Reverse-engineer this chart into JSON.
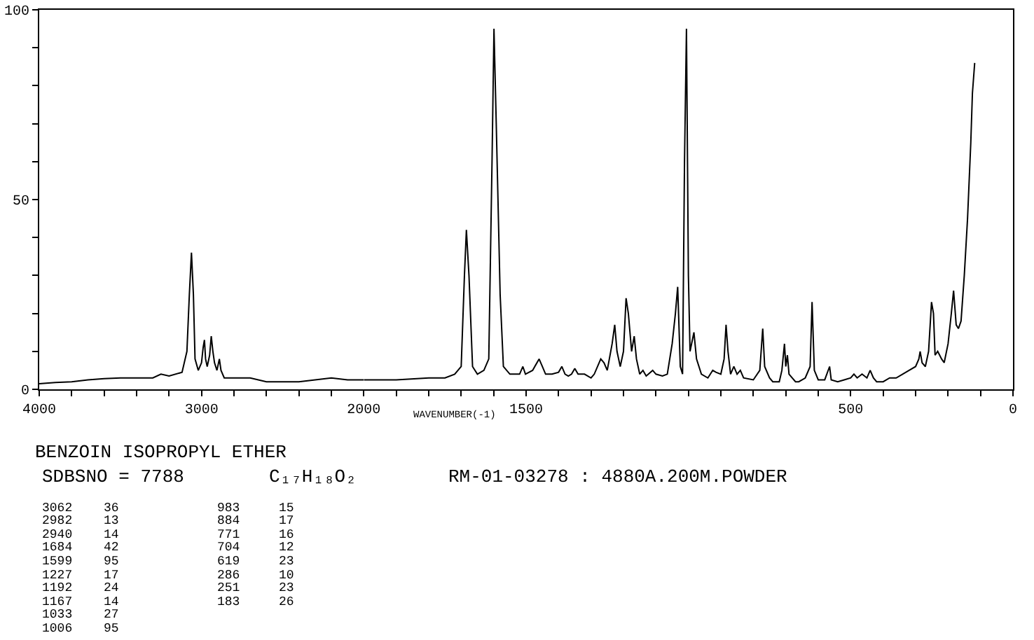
{
  "chart_data": [
    {
      "type": "line",
      "title": "BENZOIN ISOPROPYL ETHER",
      "subtitle": "SDBSNO = 7788",
      "annotations": [
        "C₁₇H₁₈O₂",
        "RM-01-03278 : 4880A.200M.POWDER",
        "3062 36",
        "2982 13",
        "2940 14",
        "1684 42",
        "1599 95",
        "1227 17",
        "1192 24",
        "1167 14",
        "1033 27",
        "1006 95",
        "983 15",
        "884 17",
        "771 16",
        "704 12",
        "619 23",
        "286 10",
        "251 23",
        "183 26"
      ],
      "x": [
        4000,
        3900,
        3800,
        3700,
        3600,
        3500,
        3400,
        3300,
        3250,
        3200,
        3120,
        3090,
        3075,
        3062,
        3050,
        3040,
        3020,
        3000,
        2990,
        2982,
        2975,
        2965,
        2950,
        2940,
        2930,
        2920,
        2905,
        2890,
        2880,
        2860,
        2800,
        2700,
        2600,
        2500,
        2400,
        2300,
        2200,
        2100,
        2000
      ],
      "series": [
        {
          "color": "#000000",
          "values": [
            1.5,
            1.8,
            2,
            2.5,
            2.8,
            3,
            3,
            3,
            4,
            3.5,
            4.5,
            10,
            25,
            36,
            25,
            8,
            5,
            7,
            11,
            13,
            8,
            6,
            9,
            14,
            10,
            7,
            5,
            8,
            5,
            3,
            3,
            3,
            2,
            2,
            2,
            2.5,
            3,
            2.5,
            2.5
          ]
        }
      ],
      "xlim": [
        4000,
        2000
      ],
      "xticks": [
        4000,
        {
          "value": 3800,
          "label": null
        },
        {
          "value": 3600,
          "label": null
        },
        {
          "value": 3400,
          "label": null
        },
        {
          "value": 3200,
          "label": null
        },
        3000,
        {
          "value": 2800,
          "label": null
        },
        {
          "value": 2600,
          "label": null
        },
        {
          "value": 2400,
          "label": null
        },
        {
          "value": 2200,
          "label": null
        },
        2000
      ],
      "ylim": [
        0,
        100
      ],
      "yticks": [
        0,
        {
          "value": 10,
          "label": null
        },
        {
          "value": 20,
          "label": null
        },
        {
          "value": 30,
          "label": null
        },
        {
          "value": 40,
          "label": null
        },
        50,
        {
          "value": 60,
          "label": null
        },
        {
          "value": 70,
          "label": null
        },
        {
          "value": 80,
          "label": null
        },
        {
          "value": 90,
          "label": null
        },
        100
      ]
    },
    {
      "type": "line",
      "xlabel": "WAVENUMBER(-1)",
      "x": [
        2000,
        1900,
        1800,
        1750,
        1720,
        1700,
        1690,
        1684,
        1676,
        1665,
        1650,
        1630,
        1615,
        1605,
        1599,
        1592,
        1580,
        1570,
        1550,
        1520,
        1510,
        1502,
        1480,
        1460,
        1450,
        1440,
        1420,
        1400,
        1390,
        1380,
        1370,
        1360,
        1350,
        1340,
        1320,
        1300,
        1290,
        1270,
        1260,
        1250,
        1235,
        1227,
        1220,
        1210,
        1200,
        1192,
        1185,
        1175,
        1167,
        1160,
        1150,
        1140,
        1130,
        1110,
        1100,
        1080,
        1065,
        1050,
        1040,
        1033,
        1025,
        1018,
        1012,
        1006,
        1000,
        995,
        983,
        975,
        960,
        940,
        925,
        915,
        900,
        890,
        884,
        878,
        870,
        860,
        850,
        840,
        830,
        800,
        780,
        771,
        765,
        750,
        740,
        720,
        712,
        704,
        700,
        695,
        690,
        670,
        660,
        640,
        625,
        619,
        612,
        600,
        580,
        565,
        560,
        540,
        520,
        500,
        490,
        480,
        465,
        450,
        440,
        430,
        420,
        400,
        380,
        360,
        340,
        320,
        300,
        290,
        286,
        280,
        270,
        260,
        251,
        245,
        240,
        232,
        220,
        212,
        200,
        190,
        183,
        175,
        168,
        160,
        150,
        140,
        130,
        125,
        118
      ],
      "series": [
        {
          "color": "#000000",
          "values": [
            2.5,
            2.5,
            3,
            3,
            4,
            6,
            30,
            42,
            30,
            6,
            4,
            5,
            8,
            60,
            95,
            70,
            25,
            6,
            4,
            4,
            6,
            4,
            5,
            8,
            6,
            4,
            4,
            4.5,
            6,
            4,
            3.5,
            4,
            5.5,
            4,
            4,
            3,
            4,
            8,
            7,
            5,
            12,
            17,
            10,
            6,
            10,
            24,
            20,
            10,
            14,
            8,
            4,
            5,
            3.5,
            5,
            4,
            3.5,
            4,
            12,
            20,
            27,
            6,
            4,
            60,
            95,
            30,
            10,
            15,
            8,
            4,
            3,
            5,
            4.5,
            4,
            8,
            17,
            10,
            4,
            6,
            4,
            5,
            3,
            2.5,
            5,
            16,
            6,
            3,
            2,
            2,
            5,
            12,
            6,
            9,
            4,
            2,
            2,
            3,
            6,
            23,
            5,
            2.5,
            2.5,
            6,
            2.5,
            2,
            2.5,
            3,
            4,
            3,
            4,
            3,
            5,
            3,
            2,
            2,
            3,
            3,
            4,
            5,
            6,
            8,
            10,
            7,
            6,
            10,
            23,
            20,
            9,
            10,
            8,
            7,
            12,
            20,
            26,
            17,
            16,
            18,
            30,
            45,
            65,
            78,
            86
          ]
        }
      ],
      "xlim": [
        2000,
        0
      ],
      "xticks": [
        {
          "value": 1900,
          "label": null
        },
        {
          "value": 1800,
          "label": null
        },
        {
          "value": 1700,
          "label": null
        },
        {
          "value": 1600,
          "label": null
        },
        1500,
        {
          "value": 1400,
          "label": null
        },
        {
          "value": 1300,
          "label": null
        },
        {
          "value": 1200,
          "label": null
        },
        {
          "value": 1100,
          "label": null
        },
        {
          "value": 1000,
          "label": null
        },
        {
          "value": 900,
          "label": null
        },
        {
          "value": 800,
          "label": null
        },
        {
          "value": 700,
          "label": null
        },
        {
          "value": 600,
          "label": null
        },
        500,
        {
          "value": 400,
          "label": null
        },
        {
          "value": 300,
          "label": null
        },
        {
          "value": 200,
          "label": null
        },
        {
          "value": 100,
          "label": null
        },
        0
      ],
      "ylim": [
        0,
        100
      ],
      "tick_labels": "x"
    }
  ]
}
